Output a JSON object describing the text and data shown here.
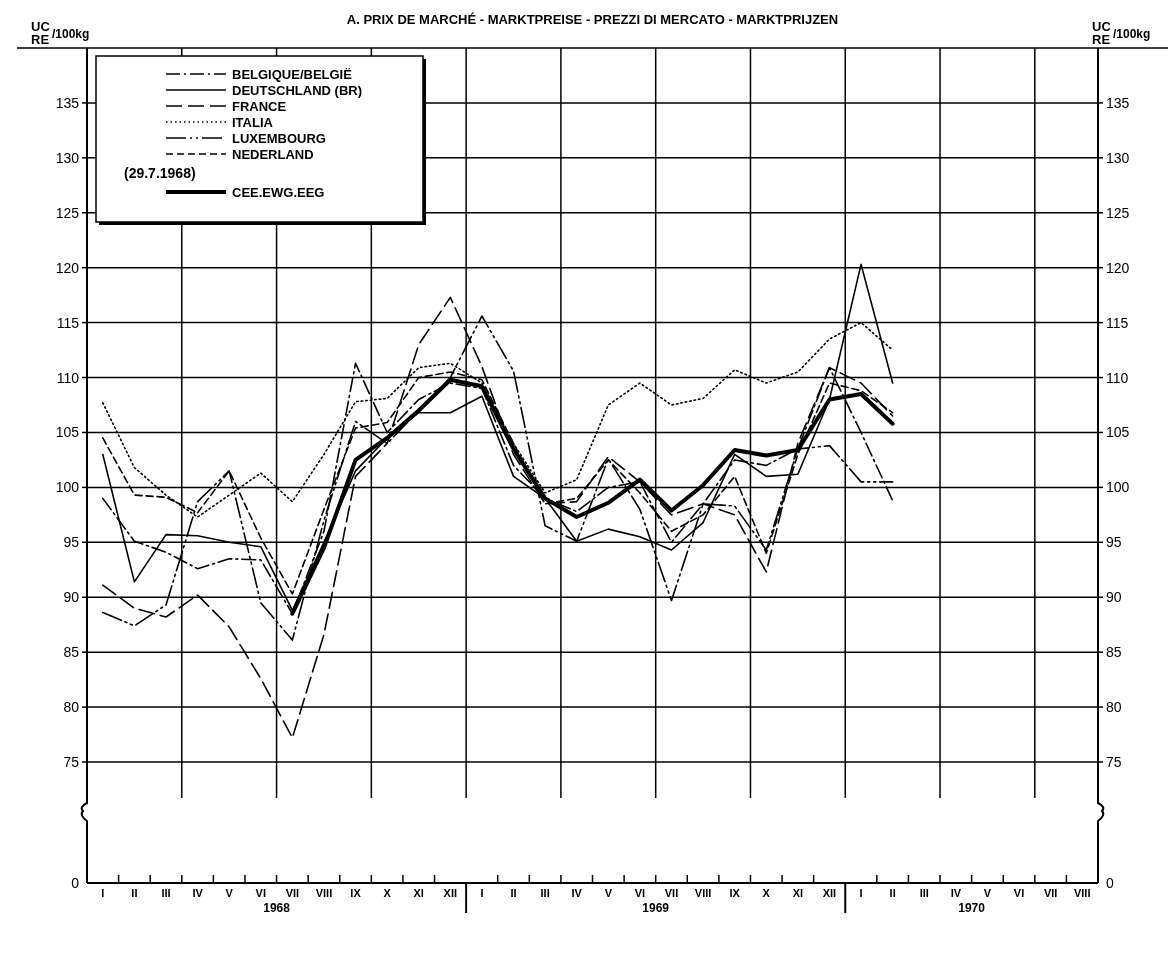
{
  "chart_data": {
    "type": "line",
    "title": "A. PRIX DE MARCHÉ - MARKTPREISE - PREZZI DI MERCATO - MARKTPRIJZEN",
    "ylabel": "UC RE /100kg",
    "y2label": "UC RE /100kg",
    "categories": [
      "I",
      "II",
      "III",
      "IV",
      "V",
      "VI",
      "VII",
      "VIII",
      "IX",
      "X",
      "XI",
      "XII",
      "I",
      "II",
      "III",
      "IV",
      "V",
      "VI",
      "VII",
      "VIII",
      "IX",
      "X",
      "XI",
      "XII",
      "I",
      "II",
      "III",
      "IV",
      "V",
      "VI",
      "VII",
      "VIII"
    ],
    "annotations": [
      "1968",
      "1969",
      "1970",
      "(29.7.1968)",
      "0",
      "0"
    ],
    "ylim": [
      75,
      140
    ],
    "yticks": [
      75,
      80,
      85,
      90,
      95,
      100,
      105,
      110,
      115,
      120,
      125,
      130,
      135
    ],
    "y2lim": [
      75,
      140
    ],
    "y2ticks": [
      75,
      80,
      85,
      90,
      95,
      100,
      105,
      110,
      115,
      120,
      125,
      130,
      135
    ],
    "grid": true,
    "legend": "top left",
    "marker": "none",
    "series": [
      {
        "name": "BELGIQUE/BELGIË",
        "color": "#000000",
        "line_style": "dashdot",
        "values": [
          99.0,
          95.1,
          94.1,
          92.6,
          93.5,
          93.4,
          88.5,
          96,
          111.3,
          105.0,
          108.0,
          109.5,
          109,
          102,
          99,
          97.8,
          100,
          100.5,
          95,
          98.5,
          102.5,
          102,
          103.5,
          110.9,
          105,
          98.8,
          null,
          null,
          null,
          null,
          null,
          null
        ]
      },
      {
        "name": "DEUTSCHLAND (BR)",
        "color": "#000000",
        "line_style": "solid",
        "values": [
          103.0,
          91.4,
          95.7,
          95.6,
          95.0,
          94.6,
          88.8,
          95,
          101.5,
          104.5,
          106.8,
          106.8,
          108.3,
          101,
          99,
          95.1,
          96.2,
          95.5,
          94.3,
          96.8,
          103,
          101,
          101.2,
          108,
          120.3,
          109.5,
          null,
          null,
          null,
          null,
          null,
          null
        ]
      },
      {
        "name": "FRANCE",
        "color": "#000000",
        "line_style": "longdashed",
        "values": [
          91.1,
          89.0,
          88.2,
          90.2,
          87.3,
          82.6,
          77.2,
          86.6,
          101,
          104,
          113,
          117.3,
          111,
          103,
          98.5,
          98.7,
          102.8,
          100.5,
          97.5,
          98.5,
          97.5,
          92.3,
          104,
          110.9,
          109.5,
          106.5,
          null,
          null,
          null,
          null,
          null,
          null
        ]
      },
      {
        "name": "ITALIA",
        "color": "#000000",
        "line_style": "dotted",
        "values": [
          107.7,
          101.8,
          99.3,
          97.3,
          99.3,
          101.3,
          98.7,
          103,
          107.8,
          108.1,
          110.9,
          111.3,
          109.5,
          104,
          99.5,
          100.7,
          107.5,
          109.5,
          107.5,
          108.1,
          110.7,
          109.5,
          110.5,
          113.5,
          115.0,
          112.5,
          null,
          null,
          null,
          null,
          null,
          null
        ]
      },
      {
        "name": "LUXEMBOURG",
        "color": "#000000",
        "line_style": "longdashdot",
        "values": [
          88.6,
          87.4,
          89.3,
          98.7,
          101.5,
          89.5,
          86.1,
          97,
          106,
          104,
          107,
          110,
          115.6,
          110.6,
          96.5,
          95.1,
          102.6,
          98,
          89.7,
          98.5,
          98.3,
          94.3,
          103.5,
          103.8,
          100.5,
          100.5,
          null,
          null,
          null,
          null,
          null,
          null
        ]
      },
      {
        "name": "NEDERLAND",
        "color": "#000000",
        "line_style": "dashed",
        "values": [
          104.5,
          99.3,
          99.1,
          97.7,
          101.5,
          95.4,
          90.3,
          98,
          105.4,
          105.9,
          110,
          110.5,
          109.8,
          104,
          98.5,
          99,
          102.5,
          99.5,
          96,
          97.5,
          101,
          94,
          103,
          109.5,
          108.8,
          106.8,
          null,
          null,
          null,
          null,
          null,
          null
        ]
      },
      {
        "name": "CEE.EWG.EEG",
        "color": "#000000",
        "line_style": "solid",
        "values": [
          null,
          null,
          null,
          null,
          null,
          null,
          88.5,
          94.5,
          102.5,
          104.5,
          107,
          109.8,
          109.2,
          103.5,
          99,
          97.3,
          98.6,
          100.7,
          97.9,
          100.2,
          103.4,
          102.9,
          103.4,
          108.0,
          108.5,
          105.8,
          null,
          null,
          null,
          null,
          null,
          null
        ]
      }
    ]
  }
}
